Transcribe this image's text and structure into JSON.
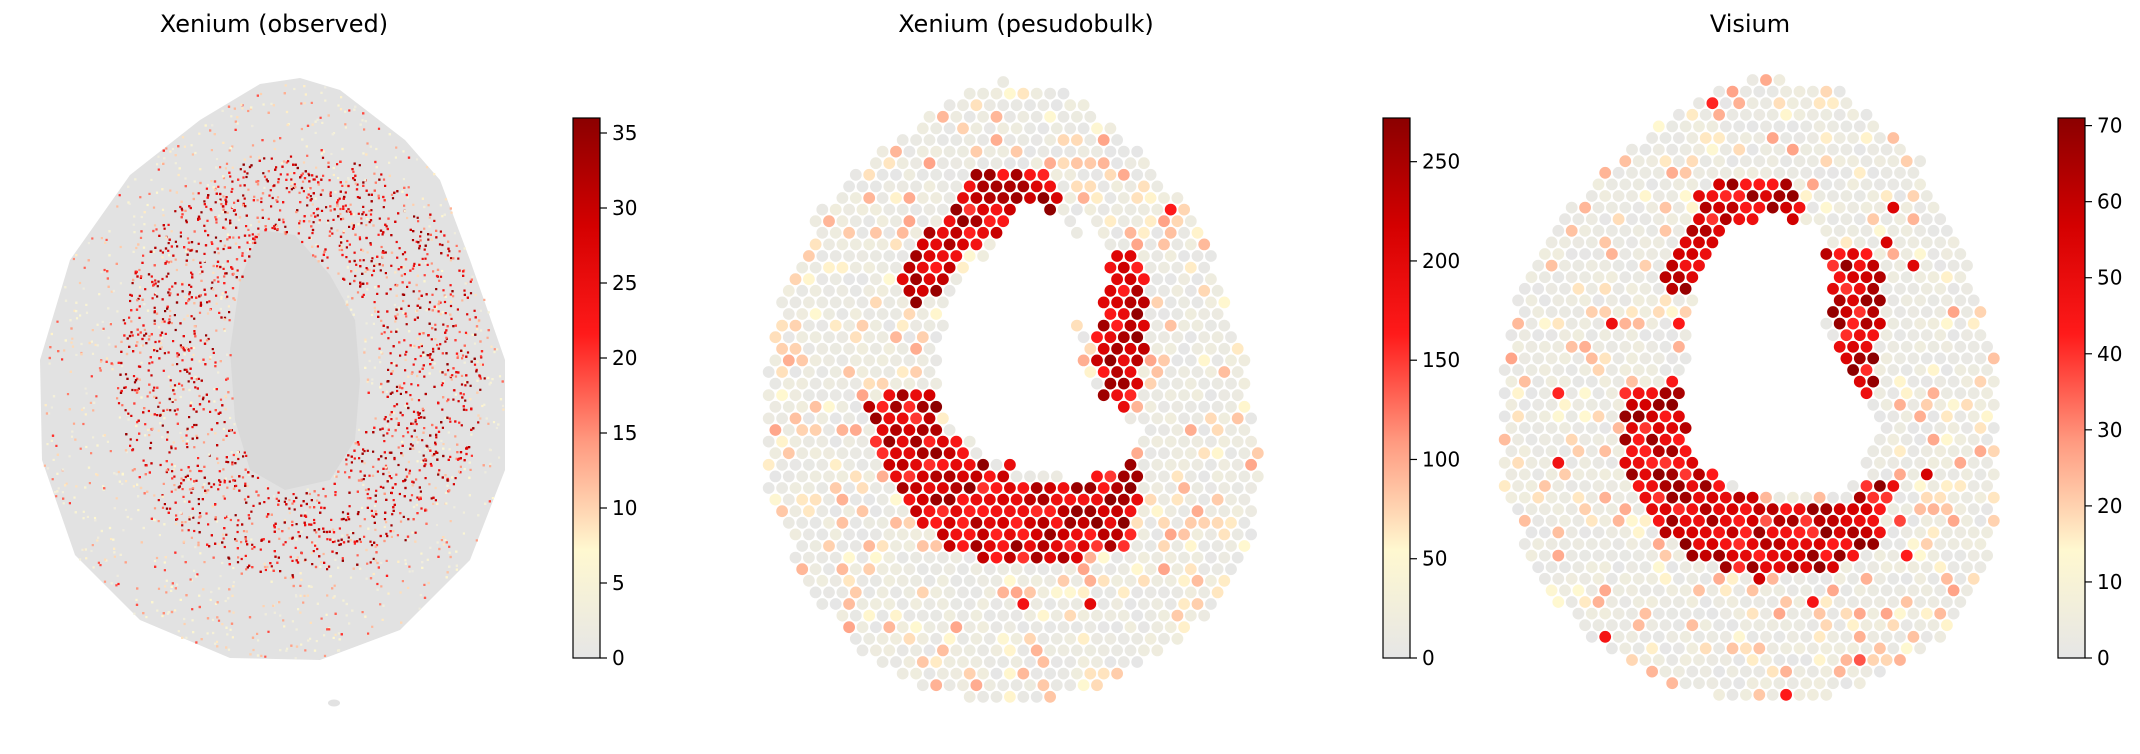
{
  "chart_data": [
    {
      "type": "scatter",
      "title": "Xenium (observed)",
      "colormap": [
        "#e6e6e6",
        "#fff8d0",
        "#ff9a80",
        "#ff1a1a",
        "#d40000",
        "#8b0000"
      ],
      "colorbar": {
        "min": 0,
        "max": 36,
        "ticks": [
          0,
          5,
          10,
          15,
          20,
          25,
          30,
          35
        ]
      }
    },
    {
      "type": "scatter",
      "title": "Xenium (pesudobulk)",
      "colormap": [
        "#e6e6e6",
        "#fff8d0",
        "#ff9a80",
        "#ff1a1a",
        "#d40000",
        "#8b0000"
      ],
      "colorbar": {
        "min": 0,
        "max": 272,
        "ticks": [
          0,
          50,
          100,
          150,
          200,
          250
        ]
      }
    },
    {
      "type": "scatter",
      "title": "Visium",
      "colormap": [
        "#e6e6e6",
        "#fff8d0",
        "#ff9a80",
        "#ff1a1a",
        "#d40000",
        "#8b0000"
      ],
      "colorbar": {
        "min": 0,
        "max": 71,
        "ticks": [
          0,
          10,
          20,
          30,
          40,
          50,
          60,
          70
        ]
      }
    }
  ]
}
